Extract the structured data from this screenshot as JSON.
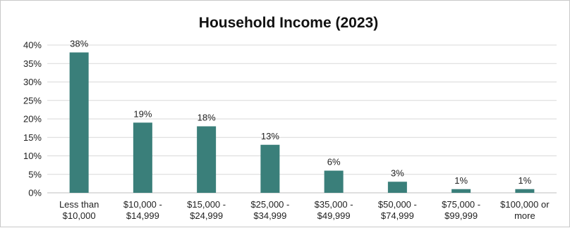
{
  "chart_data": {
    "type": "bar",
    "title": "Household Income (2023)",
    "xlabel": "",
    "ylabel": "",
    "categories": [
      [
        "Less than",
        "$10,000"
      ],
      [
        "$10,000 -",
        "$14,999"
      ],
      [
        "$15,000 -",
        "$24,999"
      ],
      [
        "$25,000 -",
        "$34,999"
      ],
      [
        "$35,000 -",
        "$49,999"
      ],
      [
        "$50,000 -",
        "$74,999"
      ],
      [
        "$75,000 -",
        "$99,999"
      ],
      [
        "$100,000 or",
        "more"
      ]
    ],
    "values": [
      38,
      19,
      18,
      13,
      6,
      3,
      1,
      1
    ],
    "value_labels": [
      "38%",
      "19%",
      "18%",
      "13%",
      "6%",
      "3%",
      "1%",
      "1%"
    ],
    "ylim": [
      0,
      40
    ],
    "yticks": [
      0,
      5,
      10,
      15,
      20,
      25,
      30,
      35,
      40
    ],
    "ytick_labels": [
      "0%",
      "5%",
      "10%",
      "15%",
      "20%",
      "25%",
      "30%",
      "35%",
      "40%"
    ],
    "grid": true,
    "legend": "none",
    "bar_color": "#3a7f7a"
  }
}
